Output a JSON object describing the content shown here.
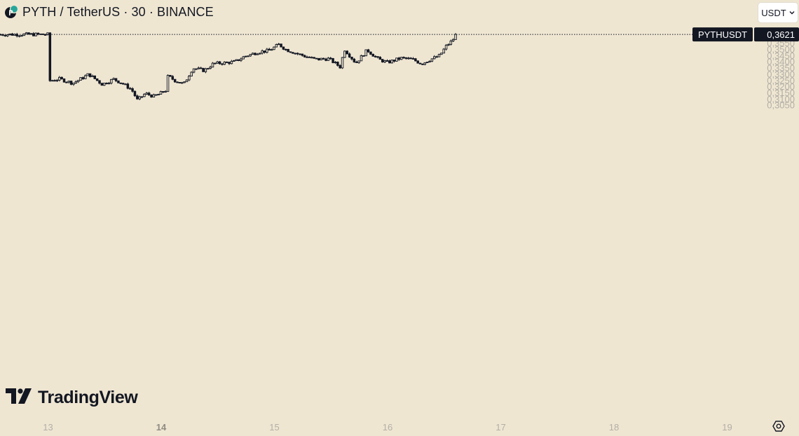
{
  "header": {
    "title": "PYTH / TetherUS · 30 · BINANCE",
    "symbol_icon": "pyth-logo-icon"
  },
  "toolbar": {
    "currency_label": "USDT",
    "currency_icon": "chevron-down-icon",
    "settings_icon": "gear-icon"
  },
  "watermark": {
    "logo_icon": "tradingview-logo-icon",
    "text": "TradingView"
  },
  "colors": {
    "background": "#efe6d2",
    "candle": "#131722",
    "axis_text": "#b2afa6",
    "label_bg": "#131722",
    "label_text": "#ffffff"
  },
  "chart_data": {
    "type": "candlestick",
    "symbol": "PYTHUSDT",
    "exchange": "BINANCE",
    "interval": "30",
    "last_price": 0.3621,
    "last_price_label": "0,3621",
    "series_label": "PYTHUSDT",
    "y_axis": {
      "ticks": [
        0.305,
        0.31,
        0.315,
        0.32,
        0.325,
        0.33,
        0.335,
        0.34,
        0.345,
        0.35,
        0.355,
        0.36,
        0.365
      ],
      "tick_labels": [
        "0,3050",
        "0,3100",
        "0,3150",
        "0,3200",
        "0,3250",
        "0,3300",
        "0,3350",
        "0,3400",
        "0,3450",
        "0,3500",
        "0,3550",
        "0,3600",
        "0,3650"
      ],
      "range": [
        0.302,
        0.3665
      ],
      "position": "right"
    },
    "x_axis": {
      "tick_labels": [
        "13",
        "14",
        "15",
        "16",
        "17",
        "18",
        "19"
      ],
      "bold_labels": [
        "14"
      ],
      "unit": "day"
    },
    "grid": false,
    "legend": "none",
    "path": [
      [
        13.0,
        0.3245
      ],
      [
        13.1,
        0.3262
      ],
      [
        13.22,
        0.3228
      ],
      [
        13.3,
        0.3268
      ],
      [
        13.36,
        0.33
      ],
      [
        13.48,
        0.3218
      ],
      [
        13.58,
        0.326
      ],
      [
        13.66,
        0.3225
      ],
      [
        13.74,
        0.3175
      ],
      [
        13.79,
        0.309
      ],
      [
        13.86,
        0.3145
      ],
      [
        13.94,
        0.312
      ],
      [
        14.04,
        0.317
      ],
      [
        14.06,
        0.3285
      ],
      [
        14.12,
        0.325
      ],
      [
        14.2,
        0.322
      ],
      [
        14.28,
        0.335
      ],
      [
        14.38,
        0.333
      ],
      [
        14.46,
        0.3385
      ],
      [
        14.56,
        0.3392
      ],
      [
        14.65,
        0.34
      ],
      [
        14.74,
        0.3445
      ],
      [
        14.86,
        0.348
      ],
      [
        14.95,
        0.349
      ],
      [
        15.04,
        0.354
      ],
      [
        15.1,
        0.35
      ],
      [
        15.22,
        0.346
      ],
      [
        15.36,
        0.342
      ],
      [
        15.48,
        0.3425
      ],
      [
        15.58,
        0.336
      ],
      [
        15.62,
        0.35
      ],
      [
        15.72,
        0.339
      ],
      [
        15.82,
        0.3495
      ],
      [
        15.92,
        0.342
      ],
      [
        16.0,
        0.3395
      ],
      [
        16.12,
        0.343
      ],
      [
        16.22,
        0.342
      ],
      [
        16.3,
        0.3385
      ],
      [
        16.38,
        0.342
      ],
      [
        16.46,
        0.345
      ],
      [
        16.52,
        0.353
      ],
      [
        16.57,
        0.357
      ],
      [
        16.61,
        0.3621
      ]
    ]
  }
}
